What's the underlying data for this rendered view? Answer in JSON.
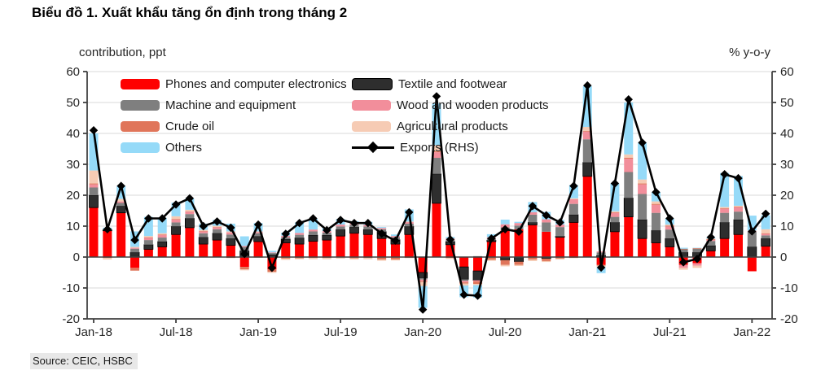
{
  "title": "Biểu đồ 1. Xuất khẩu tăng ổn định trong tháng 2",
  "source": "Source: CEIC, HSBC",
  "axes": {
    "left_title": "contribution, ppt",
    "right_title": "% y-o-y",
    "left_ticks": [
      60,
      50,
      40,
      30,
      20,
      10,
      0,
      -10,
      -20
    ],
    "right_ticks": [
      60,
      50,
      40,
      30,
      20,
      10,
      0,
      -10,
      -20
    ]
  },
  "chart_data": {
    "type": "bar",
    "subtype": "stacked-bar-with-line-overlay",
    "title": "Biểu đồ 1. Xuất khẩu tăng ổn định trong tháng 2",
    "xlabel": "",
    "ylabel_left": "contribution, ppt",
    "ylabel_right": "% y-o-y",
    "ylim": [
      -20,
      60
    ],
    "ytick_step": 10,
    "grid": true,
    "legend_position": "top-left inside plot, two columns",
    "x": [
      "Jan-18",
      "Feb-18",
      "Mar-18",
      "Apr-18",
      "May-18",
      "Jun-18",
      "Jul-18",
      "Aug-18",
      "Sep-18",
      "Oct-18",
      "Nov-18",
      "Dec-18",
      "Jan-19",
      "Feb-19",
      "Mar-19",
      "Apr-19",
      "May-19",
      "Jun-19",
      "Jul-19",
      "Aug-19",
      "Sep-19",
      "Oct-19",
      "Nov-19",
      "Dec-19",
      "Jan-20",
      "Feb-20",
      "Mar-20",
      "Apr-20",
      "May-20",
      "Jun-20",
      "Jul-20",
      "Aug-20",
      "Sep-20",
      "Oct-20",
      "Nov-20",
      "Dec-20",
      "Jan-21",
      "Feb-21",
      "Mar-21",
      "Apr-21",
      "May-21",
      "Jun-21",
      "Jul-21",
      "Aug-21",
      "Sep-21",
      "Oct-21",
      "Nov-21",
      "Dec-21",
      "Jan-22",
      "Feb-22"
    ],
    "x_tick_labels": [
      "Jan-18",
      "Jul-18",
      "Jan-19",
      "Jul-19",
      "Jan-20",
      "Jul-20",
      "Jan-21",
      "Jul-21",
      "Jan-22"
    ],
    "x_tick_indices": [
      0,
      6,
      12,
      18,
      24,
      30,
      36,
      42,
      48
    ],
    "series": [
      {
        "key": "phones",
        "name": "Phones and computer electronics",
        "color": "#fe0000",
        "values": [
          16,
          8.5,
          14.3,
          -3.5,
          2.5,
          3.3,
          7.3,
          9.5,
          4.2,
          5.5,
          3.8,
          -3.2,
          5,
          -4,
          4.6,
          4.2,
          5.1,
          5.5,
          6.8,
          7.7,
          7.3,
          6,
          4.2,
          7.3,
          -5,
          17.4,
          4,
          -3.2,
          -4.5,
          5,
          8.6,
          9,
          10.4,
          8.2,
          6.4,
          11.2,
          26.1,
          -2.5,
          8.2,
          13,
          6,
          4.6,
          3.3,
          -2.5,
          -2,
          2,
          6,
          7.3,
          -4.6,
          3.5
        ]
      },
      {
        "key": "textile",
        "name": "Textile and footwear",
        "color": "#2e2e2e",
        "values": [
          4,
          0.3,
          2.2,
          1.5,
          1.5,
          1.7,
          2.6,
          3,
          2.2,
          2.2,
          2.2,
          2,
          1.7,
          0.8,
          1.2,
          2,
          2,
          1.6,
          2.1,
          2,
          1.6,
          2.2,
          1.4,
          2.6,
          -1.8,
          9.5,
          1,
          -4,
          -3,
          0.4,
          -1,
          -1.5,
          0.8,
          -0.5,
          0.3,
          2.5,
          4.5,
          0.5,
          3,
          6.1,
          6.1,
          4,
          2.7,
          1.5,
          1.5,
          1.7,
          5.2,
          4.8,
          3.3,
          2.5
        ]
      },
      {
        "key": "machine",
        "name": "Machine and equipment",
        "color": "#7f7f7f",
        "values": [
          2.5,
          0.2,
          1,
          1.2,
          1.5,
          1.3,
          1.3,
          1.4,
          1.3,
          1.3,
          1.3,
          1.3,
          1,
          0.5,
          0.6,
          1,
          1.2,
          0.8,
          1,
          0.8,
          1,
          0.8,
          0.8,
          0.9,
          -0.5,
          5.2,
          0.5,
          -0.5,
          0.3,
          0.6,
          1,
          1.2,
          2.5,
          3,
          3,
          3.5,
          7.5,
          1,
          1.8,
          8.4,
          8.3,
          5.7,
          2.9,
          1,
          1.2,
          1.5,
          3.1,
          2.6,
          4.9,
          1
        ]
      },
      {
        "key": "wood",
        "name": "Wood and wooden products",
        "color": "#f28e9b",
        "values": [
          1,
          0,
          0.5,
          0.3,
          0.7,
          0.8,
          0.9,
          0.8,
          0.6,
          0.6,
          0.7,
          0.3,
          0.4,
          0.2,
          0.5,
          0.6,
          0.6,
          0.5,
          0.6,
          0.5,
          0.5,
          0.4,
          0.4,
          0.5,
          -0.5,
          1.8,
          0.5,
          -0.5,
          -0.4,
          0.4,
          1,
          0.8,
          0.8,
          1,
          0.8,
          1.5,
          2.5,
          0.3,
          1.3,
          4.3,
          3.1,
          2.6,
          1,
          -1,
          -0.8,
          0.4,
          1.3,
          1.4,
          0.2,
          0.5
        ]
      },
      {
        "key": "crude",
        "name": "Crude oil",
        "color": "#e0755a",
        "values": [
          0.3,
          -0.3,
          0,
          -0.9,
          0.2,
          0.2,
          0.2,
          0.1,
          0.1,
          0.1,
          -0.3,
          -0.8,
          -0.2,
          -0.8,
          -0.5,
          -0.4,
          -0.3,
          -0.3,
          -0.2,
          -0.4,
          -0.3,
          -0.8,
          -0.8,
          -0.3,
          -0.3,
          0.3,
          -0.3,
          -0.4,
          -0.8,
          -0.9,
          -1.5,
          -1,
          -0.8,
          -0.8,
          -0.5,
          -0.3,
          0.2,
          -0.3,
          0.2,
          0.3,
          0.3,
          0.3,
          0.3,
          0.2,
          0.2,
          0.2,
          0.2,
          0.2,
          0,
          0.2
        ]
      },
      {
        "key": "agri",
        "name": "Agricultural products",
        "color": "#f6cbb4",
        "values": [
          4.2,
          -0.5,
          0.8,
          0.3,
          0.4,
          0.4,
          0.9,
          0.5,
          0.4,
          0.4,
          0.3,
          -0.3,
          0.2,
          -0.3,
          -0.4,
          -0.3,
          -0.4,
          -0.4,
          -0.3,
          -0.4,
          -0.4,
          -0.4,
          -0.3,
          0.2,
          -1.3,
          2,
          -0.3,
          -0.6,
          -0.4,
          -0.3,
          -0.5,
          -0.4,
          -0.5,
          -0.3,
          -0.3,
          0.3,
          1.3,
          -0.4,
          0.3,
          1.1,
          1.3,
          0.8,
          0.3,
          -0.6,
          -0.7,
          0.2,
          0.4,
          0.3,
          0.2,
          1.3
        ]
      },
      {
        "key": "others",
        "name": "Others",
        "color": "#95daf8",
        "values": [
          12,
          0.5,
          4.2,
          5,
          6.2,
          5,
          4.4,
          3.7,
          2,
          1.9,
          2.5,
          3.1,
          2.7,
          0.5,
          1,
          3.4,
          3.5,
          1,
          1.8,
          0.6,
          1,
          0.3,
          0.5,
          3.9,
          -7,
          13.5,
          0.5,
          -3.8,
          -4,
          1,
          1.5,
          0.4,
          3.3,
          2.4,
          1.5,
          4.3,
          13.2,
          -2,
          9,
          16.8,
          11.9,
          3,
          2,
          0.3,
          0.1,
          0.4,
          11,
          9.6,
          4.8,
          4.5
        ]
      }
    ],
    "line_series": {
      "key": "exports",
      "name": "Exports (RHS)",
      "color": "#000000",
      "marker": "diamond",
      "axis": "right",
      "values": [
        41,
        9,
        23,
        5.5,
        12.5,
        12.5,
        17,
        19,
        10,
        11.5,
        9.5,
        1,
        10.5,
        -3.5,
        7.5,
        11,
        12.5,
        8.7,
        12,
        11,
        11,
        7.6,
        5.3,
        14.5,
        -17,
        52,
        5.7,
        -12.2,
        -12.5,
        6,
        9,
        8.2,
        16.5,
        13.5,
        11.2,
        23,
        55.5,
        -3.4,
        23.8,
        51,
        37,
        21,
        12.5,
        -1.7,
        -0.6,
        6.4,
        26.8,
        25.5,
        8.3,
        14
      ]
    },
    "style_colors": {
      "gridline": "#d9d9d9",
      "zero_line": "#404040",
      "axis_line": "#404040",
      "tick_text": "#262626"
    }
  }
}
